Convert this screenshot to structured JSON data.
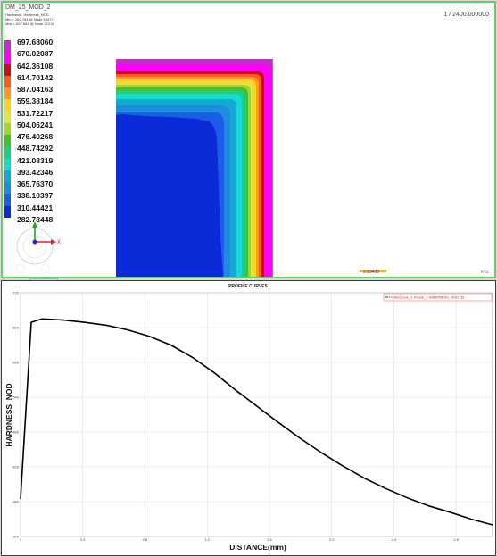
{
  "viewport": {
    "model_title": "DM_25_MOD_2",
    "result_type": "Hardness :  Hardness_NOD",
    "min_info": "Min = 282.784  @ Node 53977",
    "max_info": "Max = 697.681  @ Node 21216",
    "frame_info": "1 / 2400.000000",
    "scale_value": "2.83438",
    "frame_code": "P001",
    "animation_tab": "Animation"
  },
  "legend": {
    "levels": [
      "697.68060",
      "670.02087",
      "642.36108",
      "614.70142",
      "587.04163",
      "559.38184",
      "531.72217",
      "504.06241",
      "476.40268",
      "448.74292",
      "421.08319",
      "393.42346",
      "365.76370",
      "338.10397",
      "310.44421",
      "282.78448"
    ],
    "colors": [
      "#c42ec6",
      "#ff00ff",
      "#c81010",
      "#ff5a1f",
      "#ff9a2a",
      "#ffd21f",
      "#dbe64b",
      "#a6d42e",
      "#43c02f",
      "#1ccf86",
      "#18d9d0",
      "#13a9d2",
      "#1d8de0",
      "#1b5de6",
      "#0c2bd8"
    ]
  },
  "triad": {
    "x_label": "X",
    "y_label": "Y",
    "axis_colors": {
      "x": "#e22222",
      "y": "#22aa22",
      "z": "#2222dd"
    }
  },
  "chart_data": {
    "type": "line",
    "title": "PROFILE CURVES",
    "xlabel": "DISTANCE(mm)",
    "ylabel": "HARDNESS_NOD",
    "xlim": [
      0,
      2.2
    ],
    "ylim": [
      300,
      720
    ],
    "x_ticks": [
      "0",
      "0.4",
      "0.8",
      "1.2",
      "1.6",
      "2.0",
      "2.4",
      "2.8"
    ],
    "y_ticks": [
      "300",
      "360",
      "420",
      "480",
      "540",
      "600",
      "660",
      "720"
    ],
    "x_tick_values": [
      0,
      0.29,
      0.58,
      0.87,
      1.16,
      1.45,
      1.74,
      2.03
    ],
    "legend_label": "ProfileCurve_1 Frame_1 HARDNESS_NOD (S)",
    "series": [
      {
        "color": "#000000",
        "x": [
          0,
          0.05,
          0.1,
          0.2,
          0.3,
          0.4,
          0.5,
          0.6,
          0.7,
          0.8,
          0.9,
          1.0,
          1.1,
          1.2,
          1.3,
          1.4,
          1.5,
          1.6,
          1.7,
          1.8,
          1.9,
          2.0,
          2.1,
          2.2
        ],
        "y": [
          365,
          669,
          675,
          673,
          669,
          664,
          656,
          645,
          630,
          609,
          583,
          553,
          525,
          497,
          470,
          445,
          422,
          401,
          383,
          367,
          353,
          342,
          330,
          320
        ]
      }
    ]
  }
}
